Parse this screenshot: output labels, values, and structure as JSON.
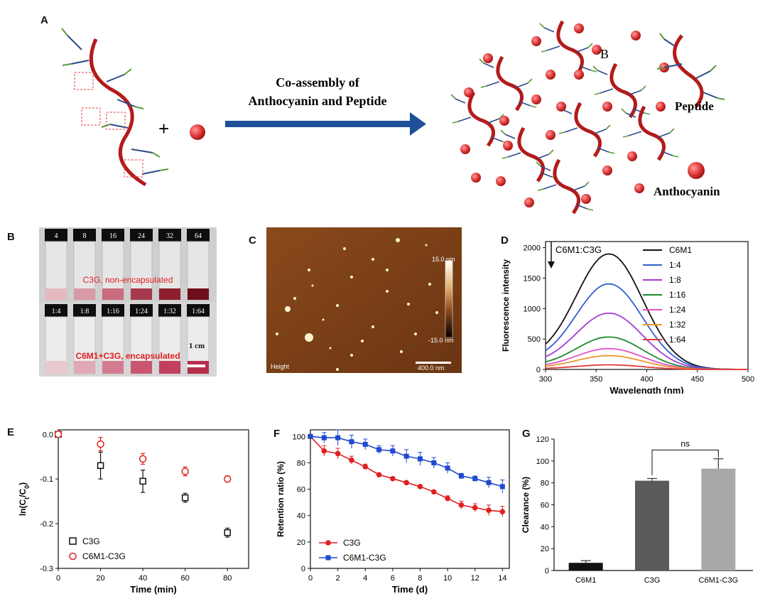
{
  "panelA": {
    "letter": "A",
    "arrow_line1": "Co-assembly of",
    "arrow_line2": "Anthocyanin and Peptide",
    "plus": "+",
    "label_peptide": "Peptide",
    "label_anthocyanin": "Anthocyanin",
    "label_b": "B"
  },
  "panelB": {
    "letter": "B",
    "top_labels": [
      "4",
      "8",
      "16",
      "24",
      "32",
      "64"
    ],
    "bottom_labels": [
      "1:4",
      "1:8",
      "1:16",
      "1:24",
      "1:32",
      "1:64"
    ],
    "top_caption": "C3G, non-encapsulated",
    "bottom_caption": "C6M1+C3G, encapsulated",
    "scale_label": "1 cm",
    "top_liquid_colors": [
      "#e4b8bf",
      "#d99aa6",
      "#c96c7e",
      "#a63a4c",
      "#8f1e2c",
      "#6e0f1c"
    ],
    "bottom_liquid_colors": [
      "#e9c9cf",
      "#e0a9b6",
      "#d37c92",
      "#c95671",
      "#c2405e",
      "#b62e4c"
    ]
  },
  "panelC": {
    "letter": "C",
    "colorbar_top": "15.0 nm",
    "colorbar_bottom": "-15.0 nm",
    "height_label": "Height",
    "scale_label": "400.0 nm"
  },
  "panelD": {
    "letter": "D",
    "annotation": "C6M1:C3G",
    "chart_data": {
      "type": "line",
      "xlabel": "Wavelength (nm)",
      "ylabel": "Fluorescence  intensity",
      "xlim": [
        300,
        500
      ],
      "ylim": [
        0,
        2100
      ],
      "xticks": [
        "300",
        "350",
        "400",
        "450",
        "500"
      ],
      "yticks": [
        "0",
        "500",
        "1000",
        "1500",
        "2000"
      ],
      "peak_x": 363,
      "series": [
        {
          "name": "C6M1",
          "color": "#111111",
          "peak": 1890,
          "start": 320
        },
        {
          "name": "1:4",
          "color": "#2f5fd0",
          "peak": 1400,
          "start": 240
        },
        {
          "name": "1:8",
          "color": "#a43bd1",
          "peak": 920,
          "start": 170
        },
        {
          "name": "1:16",
          "color": "#1e8a2e",
          "peak": 530,
          "start": 110
        },
        {
          "name": "1:24",
          "color": "#e052c8",
          "peak": 340,
          "start": 75
        },
        {
          "name": "1:32",
          "color": "#f0962a",
          "peak": 225,
          "start": 50
        },
        {
          "name": "1:64",
          "color": "#e23a3a",
          "peak": 75,
          "start": 20
        }
      ]
    }
  },
  "panelE": {
    "letter": "E",
    "chart_data": {
      "type": "scatter",
      "xlabel": "Time (min)",
      "ylabel": "ln(Ct/C0)",
      "xlim": [
        0,
        90
      ],
      "ylim": [
        -0.3,
        0.01
      ],
      "xticks": [
        "0",
        "20",
        "40",
        "60",
        "80"
      ],
      "yticks": [
        "0.0",
        "-0.1",
        "-0.2",
        "-0.3"
      ],
      "series": [
        {
          "name": "C3G",
          "color": "#111111",
          "marker": "square",
          "x": [
            0,
            20,
            40,
            60,
            80
          ],
          "y": [
            0.0,
            -0.07,
            -0.105,
            -0.142,
            -0.22
          ],
          "err": [
            0,
            0.03,
            0.025,
            0.01,
            0.01
          ]
        },
        {
          "name": "C6M1-C3G",
          "color": "#e02020",
          "marker": "circle",
          "x": [
            0,
            20,
            40,
            60,
            80
          ],
          "y": [
            0.0,
            -0.022,
            -0.055,
            -0.083,
            -0.1
          ],
          "err": [
            0,
            0.015,
            0.012,
            0.01,
            0.007
          ]
        }
      ]
    }
  },
  "panelF": {
    "letter": "F",
    "chart_data": {
      "type": "line",
      "xlabel": "Time (d)",
      "ylabel": "Retention ratio (%)",
      "xlim": [
        0,
        14.5
      ],
      "ylim": [
        0,
        105
      ],
      "xticks": [
        "0",
        "2",
        "4",
        "6",
        "8",
        "10",
        "12",
        "14"
      ],
      "yticks": [
        "0",
        "20",
        "40",
        "60",
        "80",
        "100"
      ],
      "series": [
        {
          "name": "C3G",
          "color": "#e02020",
          "marker": "circle",
          "x": [
            0,
            1,
            2,
            3,
            4,
            5,
            6,
            7,
            8,
            9,
            10,
            11,
            12,
            13,
            14
          ],
          "y": [
            100,
            89,
            87,
            82,
            77,
            71,
            68,
            65,
            62,
            58,
            53,
            48,
            46,
            44,
            43
          ],
          "err": [
            0,
            4,
            4,
            3,
            2,
            1,
            1,
            1,
            1,
            1,
            2,
            3,
            3,
            4,
            4
          ]
        },
        {
          "name": "C6M1-C3G",
          "color": "#2048d0",
          "marker": "square",
          "x": [
            0,
            1,
            2,
            3,
            4,
            5,
            6,
            7,
            8,
            9,
            10,
            11,
            12,
            13,
            14
          ],
          "y": [
            100,
            99,
            99,
            96,
            94,
            90,
            89,
            85,
            83,
            80,
            76,
            70,
            68,
            65,
            62
          ],
          "err": [
            0,
            4,
            6,
            5,
            4,
            3,
            4,
            5,
            5,
            4,
            4,
            2,
            2,
            4,
            5
          ]
        }
      ]
    }
  },
  "panelG": {
    "letter": "G",
    "ns_label": "ns",
    "chart_data": {
      "type": "bar",
      "xlabel": "",
      "ylabel": "Clearance (%)",
      "ylim": [
        0,
        120
      ],
      "yticks": [
        "0",
        "20",
        "40",
        "60",
        "80",
        "100",
        "120"
      ],
      "categories": [
        "C6M1",
        "C3G",
        "C6M1-C3G"
      ],
      "values": [
        7,
        82,
        93
      ],
      "errors": [
        2,
        2,
        9
      ],
      "colors": [
        "#111111",
        "#5a5a5a",
        "#a8a8a8"
      ]
    }
  }
}
